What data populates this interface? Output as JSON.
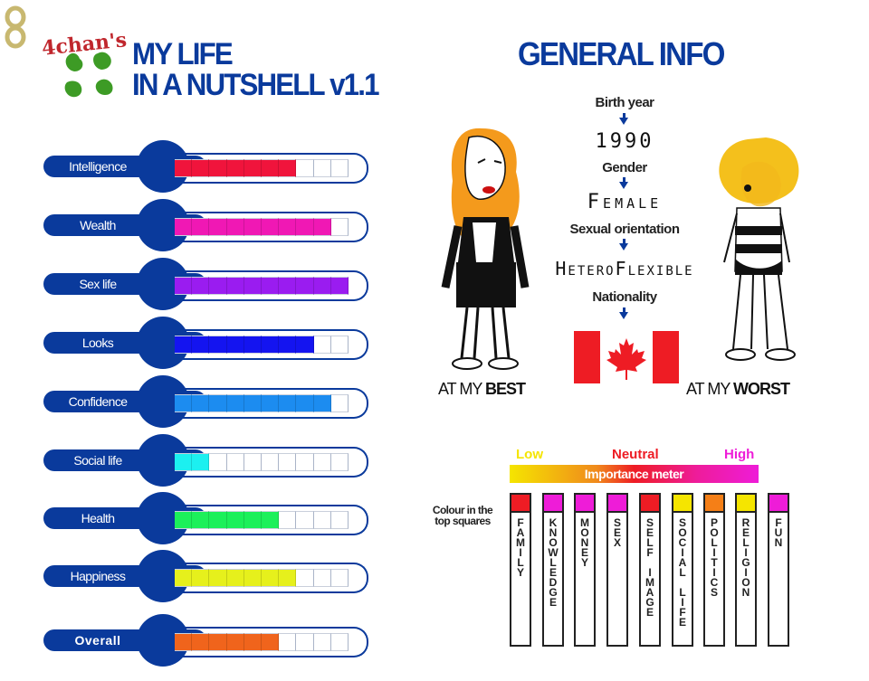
{
  "header": {
    "brand": "4chan's",
    "title_line1": "MY LIFE",
    "title_line2": "IN A NUTSHELL v1.1"
  },
  "stats": [
    {
      "label": "Intelligence",
      "filled": 7,
      "total": 10,
      "color": "#f0143c"
    },
    {
      "label": "Wealth",
      "filled": 9,
      "total": 10,
      "color": "#f018b4"
    },
    {
      "label": "Sex life",
      "filled": 10,
      "total": 10,
      "color": "#9a1cf0"
    },
    {
      "label": "Looks",
      "filled": 8,
      "total": 10,
      "color": "#1414f0"
    },
    {
      "label": "Confidence",
      "filled": 9,
      "total": 10,
      "color": "#1c8cf0"
    },
    {
      "label": "Social life",
      "filled": 2,
      "total": 10,
      "color": "#1cf0f0"
    },
    {
      "label": "Health",
      "filled": 6,
      "total": 10,
      "color": "#1cf05a"
    },
    {
      "label": "Happiness",
      "filled": 7,
      "total": 10,
      "color": "#e6f01c"
    },
    {
      "label": "Overall",
      "filled": 6,
      "total": 10,
      "color": "#f0641c"
    }
  ],
  "general_info": {
    "heading": "GENERAL INFO",
    "birth_year_label": "Birth year",
    "birth_year": "1990",
    "gender_label": "Gender",
    "gender": "Female",
    "orientation_label": "Sexual orientation",
    "orientation": "HeteroFlexible",
    "nationality_label": "Nationality",
    "flag": "canada-flag",
    "flag_red": "#ee1c24",
    "best_caption_prefix": "AT MY ",
    "best_caption_strong": "BEST",
    "worst_caption_prefix": "AT MY ",
    "worst_caption_strong": "WORST"
  },
  "importance": {
    "low": "Low",
    "neutral": "Neutral",
    "high": "High",
    "meter_label": "Importance meter",
    "low_color": "#f5e500",
    "neutral_color": "#ee1c24",
    "high_color": "#ee1cd8",
    "note": "Colour in the top squares",
    "columns": [
      {
        "label": "FAMILY",
        "color": "#ee1c24"
      },
      {
        "label": "KNOWLEDGE",
        "color": "#ee1cd8"
      },
      {
        "label": "MONEY",
        "color": "#ee1cd8"
      },
      {
        "label": "SEX",
        "color": "#ee1cd8"
      },
      {
        "label": "SELF IMAGE",
        "color": "#ee1c24"
      },
      {
        "label": "SOCIAL LIFE",
        "color": "#f5e500"
      },
      {
        "label": "POLITICS",
        "color": "#f57f17"
      },
      {
        "label": "RELIGION",
        "color": "#f5e500"
      },
      {
        "label": "FUN",
        "color": "#ee1cd8"
      }
    ]
  }
}
